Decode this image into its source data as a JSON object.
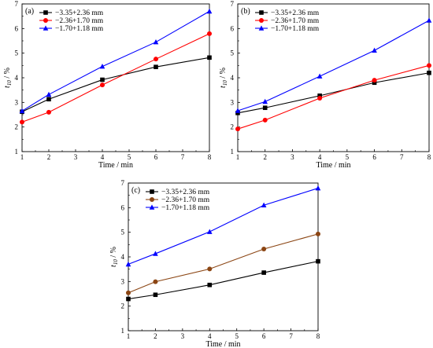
{
  "chart_data": [
    {
      "panel": "(a)",
      "type": "line",
      "xlabel": "Time / min",
      "ylabel_main": "t",
      "ylabel_sub": "10",
      "ylabel_unit": " / %",
      "xlim": [
        1,
        8
      ],
      "ylim": [
        1,
        7
      ],
      "xticks": [
        "1",
        "2",
        "3",
        "4",
        "5",
        "6",
        "7",
        "8"
      ],
      "yticks": [
        "1",
        "2",
        "3",
        "4",
        "5",
        "6",
        "7"
      ],
      "grid": false,
      "legend_position": "top-left",
      "series": [
        {
          "name": "−3.35+2.36 mm",
          "color": "#000000",
          "marker": "square",
          "x": [
            1,
            2,
            4,
            6,
            8
          ],
          "y": [
            2.62,
            3.13,
            3.92,
            4.44,
            4.82
          ]
        },
        {
          "name": "−2.36+1.70 mm",
          "color": "#ff0000",
          "marker": "circle",
          "x": [
            1,
            2,
            4,
            6,
            8
          ],
          "y": [
            2.2,
            2.6,
            3.71,
            4.76,
            5.79
          ]
        },
        {
          "name": "−1.70+1.18 mm",
          "color": "#0000ff",
          "marker": "triangle",
          "x": [
            1,
            2,
            4,
            6,
            8
          ],
          "y": [
            2.65,
            3.32,
            4.46,
            5.45,
            6.7
          ]
        }
      ]
    },
    {
      "panel": "(b)",
      "type": "line",
      "xlabel": "Time / min",
      "ylabel_main": "t",
      "ylabel_sub": "10",
      "ylabel_unit": " / %",
      "xlim": [
        1,
        8
      ],
      "ylim": [
        1,
        7
      ],
      "xticks": [
        "1",
        "2",
        "3",
        "4",
        "5",
        "6",
        "7",
        "8"
      ],
      "yticks": [
        "1",
        "2",
        "3",
        "4",
        "5",
        "6",
        "7"
      ],
      "grid": false,
      "legend_position": "top-left",
      "series": [
        {
          "name": "−3.35+2.36 mm",
          "color": "#000000",
          "marker": "square",
          "x": [
            1,
            2,
            4,
            6,
            8
          ],
          "y": [
            2.57,
            2.78,
            3.27,
            3.8,
            4.2
          ]
        },
        {
          "name": "−2.36+1.70 mm",
          "color": "#ff0000",
          "marker": "circle",
          "x": [
            1,
            2,
            4,
            6,
            8
          ],
          "y": [
            1.92,
            2.28,
            3.17,
            3.9,
            4.5
          ]
        },
        {
          "name": "−1.70+1.18 mm",
          "color": "#0000ff",
          "marker": "triangle",
          "x": [
            1,
            2,
            4,
            6,
            8
          ],
          "y": [
            2.66,
            3.03,
            4.06,
            5.11,
            6.33
          ]
        }
      ]
    },
    {
      "panel": "(c)",
      "type": "line",
      "xlabel": "Time / min",
      "ylabel_main": "t",
      "ylabel_sub": "10",
      "ylabel_unit": " / %",
      "xlim": [
        1,
        8
      ],
      "ylim": [
        1,
        7
      ],
      "xticks": [
        "1",
        "2",
        "3",
        "4",
        "5",
        "6",
        "7",
        "8"
      ],
      "yticks": [
        "1",
        "2",
        "3",
        "4",
        "5",
        "6",
        "7"
      ],
      "grid": false,
      "legend_position": "top-left",
      "series": [
        {
          "name": "−3.35+2.36 mm",
          "color": "#000000",
          "marker": "square",
          "x": [
            1,
            2,
            4,
            6,
            8
          ],
          "y": [
            2.29,
            2.46,
            2.86,
            3.36,
            3.82
          ]
        },
        {
          "name": "−2.36+1.70 mm",
          "color": "#8b4513",
          "marker": "circle",
          "x": [
            1,
            2,
            4,
            6,
            8
          ],
          "y": [
            2.54,
            2.99,
            3.51,
            4.32,
            4.93
          ]
        },
        {
          "name": "−1.70+1.18 mm",
          "color": "#0000ff",
          "marker": "triangle",
          "x": [
            1,
            2,
            4,
            6,
            8
          ],
          "y": [
            3.7,
            4.13,
            5.02,
            6.1,
            6.79
          ]
        }
      ]
    }
  ]
}
